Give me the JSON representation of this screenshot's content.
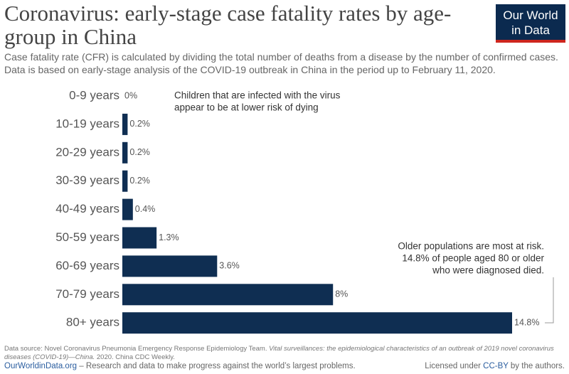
{
  "chart_data": {
    "type": "bar",
    "orientation": "horizontal",
    "title": "Coronavirus: early-stage case fatality rates by age-group in China",
    "subtitle": "Case fatality rate (CFR) is calculated by dividing the total number of deaths from a disease by the number of confirmed cases. Data is based on early-stage analysis of the COVID-19 outbreak in China in the period up to February 11, 2020.",
    "categories": [
      "0-9 years",
      "10-19 years",
      "20-29 years",
      "30-39 years",
      "40-49 years",
      "50-59 years",
      "60-69 years",
      "70-79 years",
      "80+ years"
    ],
    "values": [
      0,
      0.2,
      0.2,
      0.2,
      0.4,
      1.3,
      3.6,
      8,
      14.8
    ],
    "value_labels": [
      "0%",
      "0.2%",
      "0.2%",
      "0.2%",
      "0.4%",
      "1.3%",
      "3.6%",
      "8%",
      "14.8%"
    ],
    "color": "#0f2e52",
    "annotations": [
      {
        "lines": [
          "Children that are infected with the virus",
          "appear to be at lower risk of dying"
        ]
      },
      {
        "lines": [
          "Older populations are most at risk.",
          "14.8% of people aged 80 or older",
          "who were diagnosed died."
        ]
      }
    ]
  },
  "logo": {
    "lines": [
      "Our World",
      "in Data"
    ]
  },
  "source": {
    "prefix": "Data source: Novel Coronavirus Pneumonia Emergency Response Epidemiology Team. ",
    "italic": "Vital surveillances: the epidemiological characteristics of an outbreak of 2019 novel coronavirus diseases (COVID-19)—China.",
    "suffix": " 2020. China CDC Weekly."
  },
  "footer": {
    "site": "OurWorldinData.org",
    "tagline": " – Research and data to make progress against the world’s largest problems.",
    "license_prefix": "Licensed under ",
    "license": "CC-BY",
    "license_suffix": " by the authors."
  }
}
